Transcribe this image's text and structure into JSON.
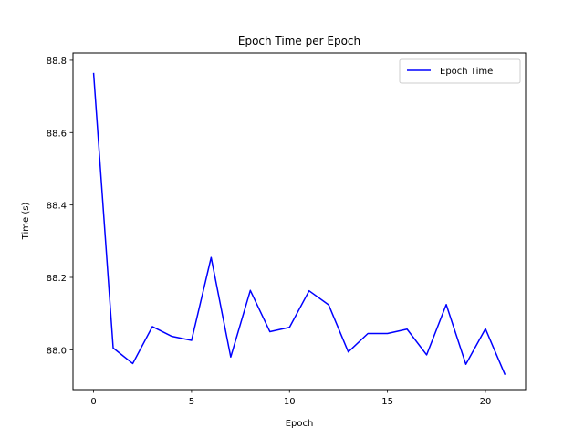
{
  "chart_data": {
    "type": "line",
    "title": "Epoch Time per Epoch",
    "xlabel": "Epoch",
    "ylabel": "Time (s)",
    "xlim": [
      -1.05,
      22.05
    ],
    "ylim": [
      87.89,
      88.82
    ],
    "xticks": [
      0,
      5,
      10,
      15,
      20
    ],
    "yticks": [
      88.0,
      88.2,
      88.4,
      88.6,
      88.8
    ],
    "ytick_labels": [
      "88.0",
      "88.2",
      "88.4",
      "88.6",
      "88.8"
    ],
    "grid": false,
    "legend_position": "upper right",
    "x": [
      0,
      1,
      2,
      3,
      4,
      5,
      6,
      7,
      8,
      9,
      10,
      11,
      12,
      13,
      14,
      15,
      16,
      17,
      18,
      19,
      20,
      21
    ],
    "series": [
      {
        "name": "Epoch Time",
        "color": "#0000ff",
        "values": [
          88.765,
          88.005,
          87.962,
          88.064,
          88.037,
          88.026,
          88.255,
          87.98,
          88.164,
          88.05,
          88.062,
          88.163,
          88.124,
          87.994,
          88.045,
          88.045,
          88.057,
          87.986,
          88.125,
          87.96,
          88.058,
          87.931
        ]
      }
    ]
  }
}
